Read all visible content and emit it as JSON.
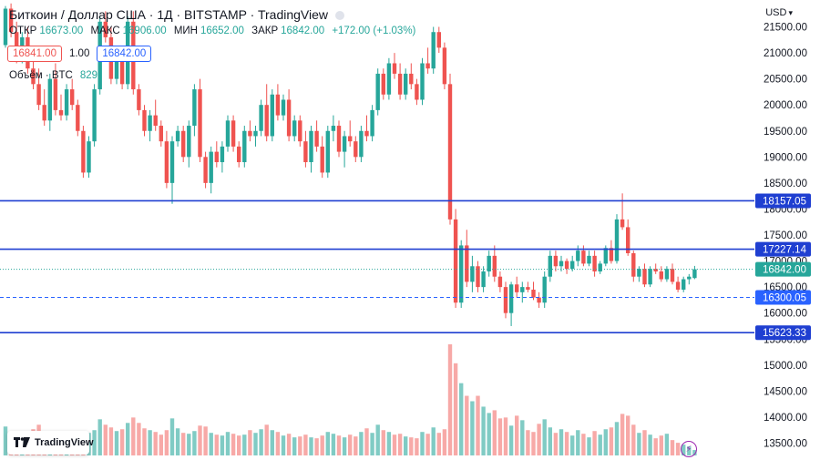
{
  "header": {
    "title": "Биткоин / Доллар США · 1Д · BITSTAMP · TradingView"
  },
  "ohlc": {
    "open_label": "ОТКР",
    "open": "16673.00",
    "high_label": "МАКС",
    "high": "16906.00",
    "low_label": "МИН",
    "low": "16652.00",
    "close_label": "ЗАКР",
    "close": "16842.00",
    "change": "+172.00 (+1.03%)"
  },
  "trade": {
    "sell_price": "16841.00",
    "spread": "1.00",
    "buy_price": "16842.00"
  },
  "volume": {
    "label": "Объём · BTC",
    "value": "829"
  },
  "currency": {
    "label": "USD",
    "chevron": "▾"
  },
  "logo": {
    "text": "TradingView",
    "icon": "tradingview-logo-icon"
  },
  "bolt_icon": "lightning-icon",
  "colors": {
    "up": "#26a69a",
    "down": "#ef5350",
    "level_line": "#1f3fd1",
    "price_line": "#26a69a",
    "dashed_line": "#2962ff"
  },
  "chart_data": {
    "type": "candlestick",
    "ylim": [
      13400,
      22000
    ],
    "y_ticks": [
      13500,
      14000,
      14500,
      15000,
      15500,
      16000,
      16500,
      17000,
      17500,
      18000,
      18500,
      19000,
      19500,
      20000,
      20500,
      21000,
      21500
    ],
    "y_tick_labels": [
      "13500.00",
      "14000.00",
      "14500.00",
      "15000.00",
      "15500.00",
      "16000.00",
      "16500.00",
      "17000.00",
      "17500.00",
      "18000.00",
      "18500.00",
      "19000.00",
      "19500.00",
      "20000.00",
      "20500.00",
      "21000.00",
      "21500.00"
    ],
    "horizontal_lines": [
      {
        "value": 18157.05,
        "label": "18157.05",
        "style": "solid"
      },
      {
        "value": 17227.14,
        "label": "17227.14",
        "style": "solid"
      },
      {
        "value": 16300.05,
        "label": "16300.05",
        "style": "dashed"
      },
      {
        "value": 15623.33,
        "label": "15623.33",
        "style": "solid"
      }
    ],
    "last_price": {
      "value": 16842,
      "label": "16842.00"
    },
    "candles": [
      [
        21150,
        21900,
        21100,
        21850
      ],
      [
        21850,
        21950,
        21300,
        21400
      ],
      [
        21400,
        21600,
        20800,
        20900
      ],
      [
        20900,
        21400,
        20800,
        21300
      ],
      [
        21300,
        21500,
        20600,
        20700
      ],
      [
        20700,
        21100,
        20300,
        20400
      ],
      [
        20400,
        20700,
        19900,
        20000
      ],
      [
        20000,
        20300,
        19600,
        19700
      ],
      [
        19700,
        20600,
        19500,
        20500
      ],
      [
        20500,
        20800,
        19800,
        19900
      ],
      [
        19900,
        20200,
        19700,
        19800
      ],
      [
        19800,
        20400,
        19700,
        20300
      ],
      [
        20300,
        20500,
        19900,
        20000
      ],
      [
        20000,
        20100,
        19400,
        19500
      ],
      [
        19500,
        19600,
        18600,
        18700
      ],
      [
        18700,
        19400,
        18600,
        19300
      ],
      [
        19300,
        20400,
        19200,
        20300
      ],
      [
        20300,
        21700,
        20200,
        21600
      ],
      [
        21600,
        21800,
        21200,
        21300
      ],
      [
        21300,
        21500,
        20400,
        20500
      ],
      [
        20500,
        21000,
        20400,
        20900
      ],
      [
        20900,
        21100,
        20300,
        20400
      ],
      [
        20400,
        21700,
        20300,
        21600
      ],
      [
        21600,
        21800,
        20200,
        20300
      ],
      [
        20300,
        20400,
        19800,
        19900
      ],
      [
        19900,
        20000,
        19400,
        19500
      ],
      [
        19500,
        19900,
        19300,
        19800
      ],
      [
        19800,
        20100,
        19500,
        19600
      ],
      [
        19600,
        19700,
        19200,
        19300
      ],
      [
        19300,
        19500,
        18400,
        18500
      ],
      [
        18500,
        19400,
        18100,
        19300
      ],
      [
        19300,
        19600,
        19200,
        19500
      ],
      [
        19500,
        19600,
        18900,
        19000
      ],
      [
        19000,
        19700,
        18800,
        19600
      ],
      [
        19600,
        20400,
        19400,
        20300
      ],
      [
        20300,
        20500,
        18900,
        19000
      ],
      [
        19000,
        19100,
        18400,
        18500
      ],
      [
        18500,
        19200,
        18300,
        19100
      ],
      [
        19100,
        19300,
        18800,
        18900
      ],
      [
        18900,
        19300,
        18700,
        19200
      ],
      [
        19200,
        19800,
        19100,
        19700
      ],
      [
        19700,
        19800,
        19100,
        19200
      ],
      [
        19200,
        19300,
        18800,
        18900
      ],
      [
        18900,
        19600,
        18800,
        19500
      ],
      [
        19500,
        19700,
        19300,
        19400
      ],
      [
        19400,
        19600,
        19200,
        19500
      ],
      [
        19500,
        20100,
        19400,
        20000
      ],
      [
        20000,
        20400,
        19300,
        19400
      ],
      [
        19400,
        20300,
        19300,
        20200
      ],
      [
        20200,
        20400,
        19700,
        19800
      ],
      [
        19800,
        20200,
        19700,
        20100
      ],
      [
        20100,
        20300,
        19300,
        19400
      ],
      [
        19400,
        19800,
        19300,
        19700
      ],
      [
        19700,
        19800,
        19200,
        19300
      ],
      [
        19300,
        19500,
        18800,
        18900
      ],
      [
        18900,
        19600,
        18700,
        19500
      ],
      [
        19500,
        19700,
        19100,
        19200
      ],
      [
        19200,
        19400,
        18600,
        18700
      ],
      [
        18700,
        19600,
        18600,
        19500
      ],
      [
        19500,
        19800,
        19300,
        19600
      ],
      [
        19600,
        19700,
        19000,
        19100
      ],
      [
        19100,
        19500,
        18800,
        19400
      ],
      [
        19400,
        19700,
        19200,
        19300
      ],
      [
        19300,
        19400,
        18900,
        19000
      ],
      [
        19000,
        19600,
        18900,
        19500
      ],
      [
        19500,
        19800,
        19300,
        19400
      ],
      [
        19400,
        20000,
        19300,
        19900
      ],
      [
        19900,
        20700,
        19800,
        20600
      ],
      [
        20600,
        20700,
        20100,
        20200
      ],
      [
        20200,
        20900,
        20100,
        20800
      ],
      [
        20800,
        21000,
        20500,
        20600
      ],
      [
        20600,
        20800,
        20100,
        20200
      ],
      [
        20200,
        20700,
        20100,
        20600
      ],
      [
        20600,
        20800,
        20300,
        20400
      ],
      [
        20400,
        20500,
        20000,
        20100
      ],
      [
        20100,
        20900,
        20000,
        20800
      ],
      [
        20800,
        21100,
        20600,
        20700
      ],
      [
        20700,
        21500,
        20600,
        21400
      ],
      [
        21400,
        21500,
        21000,
        21100
      ],
      [
        21100,
        21200,
        20300,
        20400
      ],
      [
        20400,
        20600,
        17700,
        17800
      ],
      [
        17800,
        18000,
        16100,
        16200
      ],
      [
        16200,
        17400,
        16100,
        17300
      ],
      [
        17300,
        17600,
        16500,
        16600
      ],
      [
        16600,
        17100,
        16400,
        16900
      ],
      [
        16900,
        17000,
        16400,
        16500
      ],
      [
        16500,
        16900,
        16400,
        16800
      ],
      [
        16800,
        17200,
        16700,
        17100
      ],
      [
        17100,
        17300,
        16600,
        16700
      ],
      [
        16700,
        16800,
        16400,
        16500
      ],
      [
        16500,
        16600,
        15900,
        16000
      ],
      [
        16000,
        16600,
        15750,
        16550
      ],
      [
        16550,
        16700,
        16300,
        16400
      ],
      [
        16400,
        16600,
        16200,
        16500
      ],
      [
        16500,
        16600,
        16400,
        16450
      ],
      [
        16450,
        16600,
        16250,
        16300
      ],
      [
        16300,
        16400,
        16100,
        16200
      ],
      [
        16200,
        16800,
        16100,
        16700
      ],
      [
        16700,
        17200,
        16600,
        17100
      ],
      [
        17100,
        17200,
        16800,
        16900
      ],
      [
        16900,
        17100,
        16800,
        17000
      ],
      [
        17000,
        17050,
        16750,
        16850
      ],
      [
        16850,
        17100,
        16800,
        17000
      ],
      [
        17000,
        17300,
        16900,
        17200
      ],
      [
        17200,
        17300,
        16900,
        16950
      ],
      [
        16950,
        17200,
        16900,
        17100
      ],
      [
        17100,
        17200,
        16700,
        16800
      ],
      [
        16800,
        17000,
        16750,
        16950
      ],
      [
        16950,
        17300,
        16900,
        17250
      ],
      [
        17250,
        17400,
        16950,
        17000
      ],
      [
        17000,
        17900,
        16950,
        17800
      ],
      [
        17800,
        18300,
        17600,
        17650
      ],
      [
        17650,
        17800,
        17100,
        17150
      ],
      [
        17150,
        17200,
        16600,
        16700
      ],
      [
        16700,
        16900,
        16600,
        16850
      ],
      [
        16850,
        16950,
        16500,
        16550
      ],
      [
        16550,
        16900,
        16500,
        16850
      ],
      [
        16850,
        16950,
        16750,
        16800
      ],
      [
        16800,
        16900,
        16600,
        16650
      ],
      [
        16650,
        16900,
        16600,
        16850
      ],
      [
        16850,
        16950,
        16550,
        16600
      ],
      [
        16600,
        16700,
        16400,
        16450
      ],
      [
        16450,
        16700,
        16400,
        16650
      ],
      [
        16650,
        16750,
        16550,
        16700
      ],
      [
        16673,
        16906,
        16652,
        16842
      ]
    ],
    "volumes": [
      3.2,
      2.6,
      1.8,
      2.1,
      2.5,
      2.9,
      3.4,
      2.3,
      2.0,
      2.6,
      2.4,
      2.7,
      2.2,
      2.1,
      1.9,
      2.5,
      2.8,
      4.0,
      3.4,
      3.1,
      2.7,
      2.9,
      3.6,
      4.2,
      3.6,
      3.0,
      2.8,
      2.6,
      2.3,
      2.8,
      4.1,
      3.0,
      2.5,
      2.4,
      2.7,
      3.3,
      3.2,
      2.5,
      2.3,
      2.2,
      2.6,
      2.4,
      2.2,
      2.3,
      2.8,
      2.5,
      2.9,
      3.4,
      2.8,
      2.6,
      2.2,
      2.4,
      2.0,
      2.1,
      2.3,
      2.0,
      1.9,
      2.2,
      2.6,
      2.4,
      2.2,
      2.0,
      2.3,
      2.1,
      2.6,
      3.0,
      2.5,
      3.4,
      2.8,
      2.6,
      2.3,
      2.4,
      2.1,
      2.0,
      1.9,
      2.6,
      2.4,
      3.1,
      2.5,
      2.9,
      12.3,
      10.2,
      8.0,
      6.6,
      6.0,
      6.6,
      5.4,
      4.7,
      5.0,
      4.1,
      4.2,
      3.3,
      4.4,
      3.9,
      2.8,
      2.6,
      3.5,
      4.0,
      3.1,
      2.5,
      2.9,
      2.6,
      2.2,
      2.8,
      2.4,
      2.0,
      2.7,
      2.3,
      2.9,
      3.1,
      3.7,
      4.6,
      4.4,
      3.4,
      2.5,
      2.8,
      2.3,
      1.9,
      2.2,
      2.4,
      1.7,
      1.4,
      1.2,
      1.0,
      0.6
    ]
  }
}
